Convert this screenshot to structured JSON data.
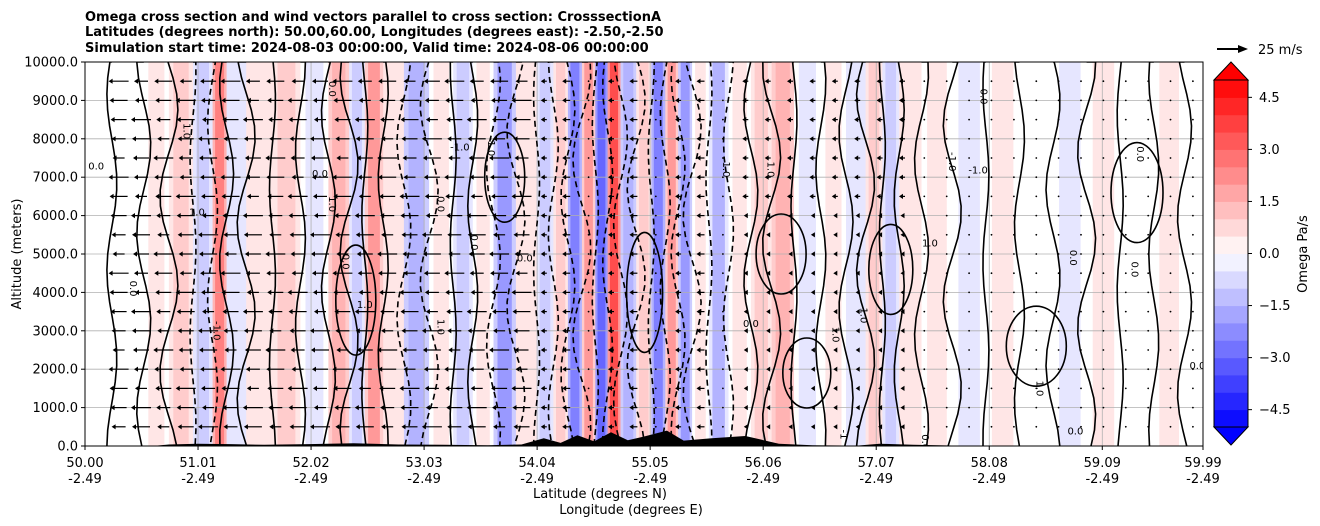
{
  "chart_data": {
    "type": "heatmap",
    "title_lines": [
      "Omega cross section and wind vectors parallel to cross section: CrosssectionA",
      "Latitudes (degrees north): 50.00,60.00, Longitudes (degrees east): -2.50,-2.50",
      "Simulation start time: 2024-08-03 00:00:00, Valid time: 2024-08-06 00:00:00"
    ],
    "ylabel": "Altitude (meters)",
    "xlabel_lines": [
      "Latitude (degrees N)",
      "Longitude (degrees E)"
    ],
    "x_range": [
      50.0,
      59.99
    ],
    "y_range": [
      0,
      10000
    ],
    "x_ticks": [
      {
        "lat": "50.00",
        "lon": "-2.49",
        "pos": 50.0
      },
      {
        "lat": "51.01",
        "lon": "-2.49",
        "pos": 51.01
      },
      {
        "lat": "52.02",
        "lon": "-2.49",
        "pos": 52.02
      },
      {
        "lat": "53.03",
        "lon": "-2.49",
        "pos": 53.03
      },
      {
        "lat": "54.04",
        "lon": "-2.49",
        "pos": 54.04
      },
      {
        "lat": "55.05",
        "lon": "-2.49",
        "pos": 55.05
      },
      {
        "lat": "56.06",
        "lon": "-2.49",
        "pos": 56.06
      },
      {
        "lat": "57.07",
        "lon": "-2.49",
        "pos": 57.07
      },
      {
        "lat": "58.08",
        "lon": "-2.49",
        "pos": 58.08
      },
      {
        "lat": "59.09",
        "lon": "-2.49",
        "pos": 59.09
      },
      {
        "lat": "59.99",
        "lon": "-2.49",
        "pos": 59.99
      }
    ],
    "y_ticks": [
      {
        "label": "0.0",
        "value": 0
      },
      {
        "label": "1000.0",
        "value": 1000
      },
      {
        "label": "2000.0",
        "value": 2000
      },
      {
        "label": "3000.0",
        "value": 3000
      },
      {
        "label": "4000.0",
        "value": 4000
      },
      {
        "label": "5000.0",
        "value": 5000
      },
      {
        "label": "6000.0",
        "value": 6000
      },
      {
        "label": "7000.0",
        "value": 7000
      },
      {
        "label": "8000.0",
        "value": 8000
      },
      {
        "label": "9000.0",
        "value": 9000
      },
      {
        "label": "10000.0",
        "value": 10000
      }
    ],
    "grid": true,
    "colorbar": {
      "label": "Omega Pa/s",
      "range": [
        -5.0,
        5.0
      ],
      "ticks": [
        {
          "label": "4.5",
          "value": 4.5
        },
        {
          "label": "3.0",
          "value": 3.0
        },
        {
          "label": "1.5",
          "value": 1.5
        },
        {
          "label": "0.0",
          "value": 0.0
        },
        {
          "label": "−1.5",
          "value": -1.5
        },
        {
          "label": "−3.0",
          "value": -3.0
        },
        {
          "label": "−4.5",
          "value": -4.5
        }
      ],
      "extend": "both",
      "colormap": "bwr"
    },
    "quiver_key": {
      "label": "25 m/s",
      "speed": 25
    },
    "columns": [
      {
        "x": 50.08,
        "omega": 0.2
      },
      {
        "x": 50.4,
        "omega": -0.1
      },
      {
        "x": 50.65,
        "omega": 0.4
      },
      {
        "x": 50.85,
        "omega": 0.9
      },
      {
        "x": 51.08,
        "omega": -1.0
      },
      {
        "x": 51.2,
        "omega": 2.4
      },
      {
        "x": 51.33,
        "omega": -0.6
      },
      {
        "x": 51.55,
        "omega": 0.5
      },
      {
        "x": 51.8,
        "omega": 0.8
      },
      {
        "x": 52.05,
        "omega": -0.3
      },
      {
        "x": 52.3,
        "omega": 1.6
      },
      {
        "x": 52.42,
        "omega": -0.9
      },
      {
        "x": 52.58,
        "omega": 1.8
      },
      {
        "x": 52.75,
        "omega": 0.6
      },
      {
        "x": 52.95,
        "omega": -1.4
      },
      {
        "x": 53.2,
        "omega": 0.3
      },
      {
        "x": 53.38,
        "omega": -0.8
      },
      {
        "x": 53.55,
        "omega": 0.4
      },
      {
        "x": 53.75,
        "omega": -2.0
      },
      {
        "x": 53.95,
        "omega": 0.5
      },
      {
        "x": 54.12,
        "omega": -1.1
      },
      {
        "x": 54.25,
        "omega": 1.2
      },
      {
        "x": 54.38,
        "omega": -2.6
      },
      {
        "x": 54.5,
        "omega": 1.8
      },
      {
        "x": 54.62,
        "omega": -3.2
      },
      {
        "x": 54.72,
        "omega": 3.6
      },
      {
        "x": 54.85,
        "omega": -1.4
      },
      {
        "x": 55.0,
        "omega": 0.9
      },
      {
        "x": 55.12,
        "omega": -2.4
      },
      {
        "x": 55.25,
        "omega": 1.8
      },
      {
        "x": 55.35,
        "omega": -1.8
      },
      {
        "x": 55.5,
        "omega": 0.3
      },
      {
        "x": 55.65,
        "omega": -1.3
      },
      {
        "x": 55.85,
        "omega": 0.4
      },
      {
        "x": 56.05,
        "omega": 0.9
      },
      {
        "x": 56.22,
        "omega": 1.6
      },
      {
        "x": 56.45,
        "omega": -0.4
      },
      {
        "x": 56.7,
        "omega": 0.4
      },
      {
        "x": 56.9,
        "omega": -0.6
      },
      {
        "x": 57.05,
        "omega": 0.9
      },
      {
        "x": 57.2,
        "omega": -0.9
      },
      {
        "x": 57.35,
        "omega": 0.6
      },
      {
        "x": 57.6,
        "omega": 0.3
      },
      {
        "x": 57.9,
        "omega": -0.4
      },
      {
        "x": 58.2,
        "omega": 0.4
      },
      {
        "x": 58.5,
        "omega": 0.1
      },
      {
        "x": 58.8,
        "omega": -0.4
      },
      {
        "x": 59.1,
        "omega": 0.3
      },
      {
        "x": 59.4,
        "omega": -0.2
      },
      {
        "x": 59.7,
        "omega": 0.3
      },
      {
        "x": 59.95,
        "omega": 0.1
      }
    ],
    "contour_labels": [
      {
        "text": "0.0",
        "x": 50.1,
        "y": 7200
      },
      {
        "text": "0.0",
        "x": 50.4,
        "y": 4100
      },
      {
        "text": "1.0",
        "x": 50.88,
        "y": 8200
      },
      {
        "text": "1.0",
        "x": 51.0,
        "y": 6000
      },
      {
        "text": "-1.0",
        "x": 51.15,
        "y": 3000
      },
      {
        "text": "0.0",
        "x": 52.18,
        "y": 9300
      },
      {
        "text": "0.0",
        "x": 52.1,
        "y": 7000
      },
      {
        "text": "1.0",
        "x": 52.18,
        "y": 6300
      },
      {
        "text": "0.0",
        "x": 52.3,
        "y": 4800
      },
      {
        "text": "1.0",
        "x": 52.5,
        "y": 3600
      },
      {
        "text": "0.0",
        "x": 53.15,
        "y": 6300
      },
      {
        "text": "1.0",
        "x": 53.15,
        "y": 3100
      },
      {
        "text": "-1.0",
        "x": 53.35,
        "y": 7700
      },
      {
        "text": "0.0",
        "x": 53.45,
        "y": 5300
      },
      {
        "text": "-1.0",
        "x": 53.6,
        "y": 7800
      },
      {
        "text": "0.0",
        "x": 53.93,
        "y": 4800
      },
      {
        "text": "1.0",
        "x": 55.7,
        "y": 7200
      },
      {
        "text": "1.0",
        "x": 56.1,
        "y": 7200
      },
      {
        "text": "0.0",
        "x": 55.95,
        "y": 3100
      },
      {
        "text": "1.0",
        "x": 56.68,
        "y": 2900
      },
      {
        "text": "1.0",
        "x": 56.93,
        "y": 3400
      },
      {
        "text": "1.0",
        "x": 57.55,
        "y": 5200
      },
      {
        "text": "-1.0",
        "x": 57.72,
        "y": 7400
      },
      {
        "text": "0.0",
        "x": 58.0,
        "y": 9100
      },
      {
        "text": "-1.0",
        "x": 57.98,
        "y": 7100
      },
      {
        "text": "0.0",
        "x": 58.8,
        "y": 4900
      },
      {
        "text": "1.0",
        "x": 58.5,
        "y": 1500
      },
      {
        "text": "0.0",
        "x": 58.85,
        "y": 300
      },
      {
        "text": "0.0",
        "x": 59.4,
        "y": 7600
      },
      {
        "text": "0.0",
        "x": 59.35,
        "y": 4600
      },
      {
        "text": "0.0",
        "x": 59.94,
        "y": 2000
      },
      {
        "text": "0.0",
        "x": 57.48,
        "y": 100
      },
      {
        "text": "-1",
        "x": 56.75,
        "y": 300
      }
    ]
  }
}
